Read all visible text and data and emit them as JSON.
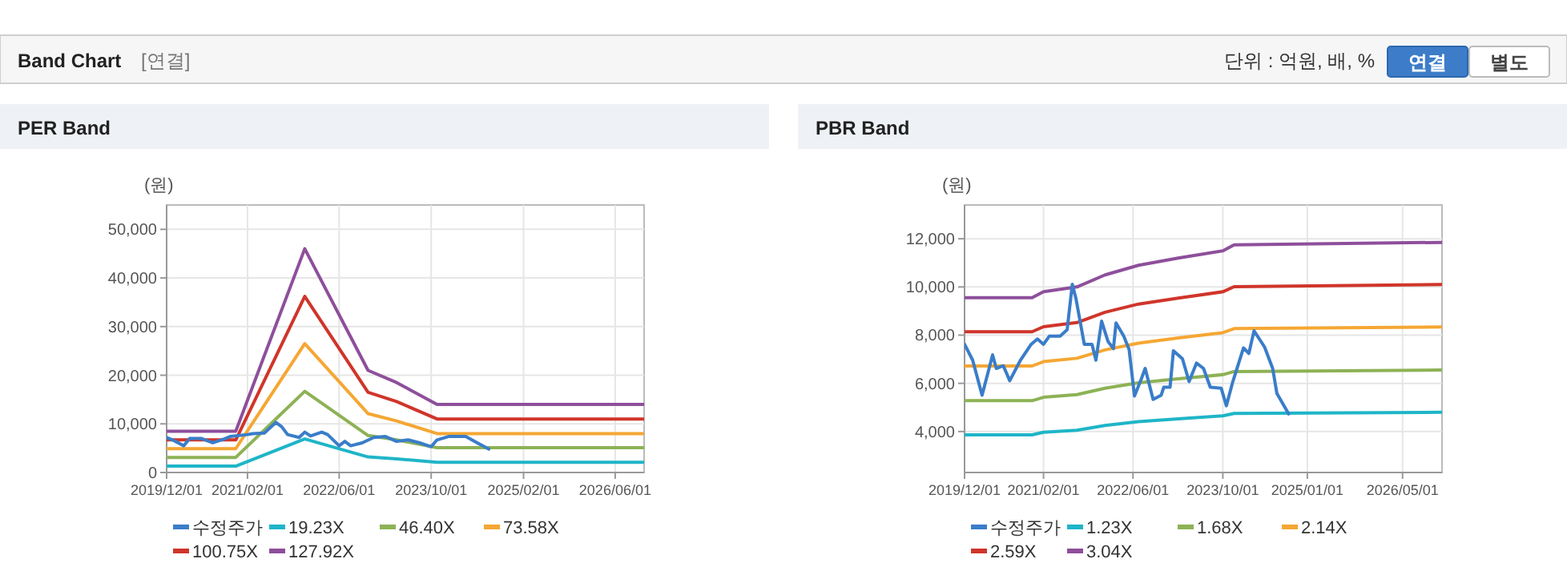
{
  "chart_data": [
    {
      "type": "other",
      "title": "Band Chart",
      "annotations": [
        "[연결]",
        "단위 : 억원, 배, %",
        "연결",
        "별도"
      ]
    },
    {
      "type": "line",
      "title": "PER Band",
      "ylabel": "(원)",
      "grid": true,
      "legend": "bottom",
      "marker": "none",
      "line_style": "solid",
      "xlim": [
        "2019-12-01",
        "2026-11-01"
      ],
      "xticks": [
        {
          "value": "2019-12-01",
          "label": "2019/12/01"
        },
        {
          "value": "2021-02-01",
          "label": "2021/02/01"
        },
        {
          "value": "2022-06-01",
          "label": "2022/06/01"
        },
        {
          "value": "2023-10-01",
          "label": "2023/10/01"
        },
        {
          "value": "2025-02-01",
          "label": "2025/02/01"
        },
        {
          "value": "2026-06-01",
          "label": "2026/06/01"
        }
      ],
      "ylim": [
        0,
        55000
      ],
      "yticks": [
        0,
        {
          "value": 10000,
          "label": "10,000"
        },
        {
          "value": 20000,
          "label": "20,000"
        },
        {
          "value": 30000,
          "label": "30,000"
        },
        {
          "value": 40000,
          "label": "40,000"
        },
        {
          "value": 50000,
          "label": "50,000"
        }
      ],
      "series": [
        {
          "name": "수정주가",
          "color": "#3a7dc9",
          "x": [
            "2019-12",
            "2020-01",
            "2020-03",
            "2020-04",
            "2020-06",
            "2020-08",
            "2020-10",
            "2020-11",
            "2021-02",
            "2021-03",
            "2021-05",
            "2021-07",
            "2021-08",
            "2021-09",
            "2021-11",
            "2021-12",
            "2022-01",
            "2022-03",
            "2022-04",
            "2022-06",
            "2022-07",
            "2022-08",
            "2022-10",
            "2022-12",
            "2023-02",
            "2023-04",
            "2023-06",
            "2023-08",
            "2023-10",
            "2023-11",
            "2024-01",
            "2024-04",
            "2024-06",
            "2024-08"
          ],
          "values": [
            7200,
            6700,
            5500,
            7000,
            7000,
            6100,
            6900,
            7400,
            7800,
            8000,
            8100,
            10300,
            9400,
            7800,
            7200,
            8300,
            7500,
            8300,
            7800,
            5500,
            6400,
            5500,
            6100,
            7200,
            7400,
            6400,
            6700,
            6100,
            5300,
            6700,
            7400,
            7400,
            6100,
            4800
          ]
        },
        {
          "name": "19.23X",
          "color": "#1fb5c8",
          "x": [
            "2019-12",
            "2020-12",
            "2021-12",
            "2022-11",
            "2023-04",
            "2023-11",
            "2026-11"
          ],
          "values": [
            1300,
            1300,
            6900,
            3200,
            2800,
            2100,
            2100
          ]
        },
        {
          "name": "46.40X",
          "color": "#8db255",
          "x": [
            "2019-12",
            "2020-12",
            "2021-12",
            "2022-11",
            "2023-04",
            "2023-11",
            "2026-11"
          ],
          "values": [
            3100,
            3100,
            16700,
            7600,
            6700,
            5100,
            5100
          ]
        },
        {
          "name": "73.58X",
          "color": "#f5a733",
          "x": [
            "2019-12",
            "2020-12",
            "2021-12",
            "2022-11",
            "2023-04",
            "2023-11",
            "2026-11"
          ],
          "values": [
            4900,
            4900,
            26500,
            12100,
            10600,
            8000,
            8000
          ]
        },
        {
          "name": "100.75X",
          "color": "#d0352a",
          "x": [
            "2019-12",
            "2020-12",
            "2021-12",
            "2022-11",
            "2023-04",
            "2023-11",
            "2026-11"
          ],
          "values": [
            6700,
            6700,
            36200,
            16500,
            14600,
            11000,
            11000
          ]
        },
        {
          "name": "127.92X",
          "color": "#8e4f9b",
          "x": [
            "2019-12",
            "2020-12",
            "2021-12",
            "2022-11",
            "2023-04",
            "2023-11",
            "2026-11"
          ],
          "values": [
            8500,
            8500,
            46000,
            21000,
            18500,
            14000,
            14000
          ]
        }
      ]
    },
    {
      "type": "line",
      "title": "PBR Band",
      "ylabel": "(원)",
      "grid": true,
      "legend": "bottom",
      "marker": "none",
      "line_style": "solid",
      "xlim": [
        "2019-12-01",
        "2027-01-01"
      ],
      "xticks": [
        {
          "value": "2019-12-01",
          "label": "2019/12/01"
        },
        {
          "value": "2021-02-01",
          "label": "2021/02/01"
        },
        {
          "value": "2022-06-01",
          "label": "2022/06/01"
        },
        {
          "value": "2023-10-01",
          "label": "2023/10/01"
        },
        {
          "value": "2025-01-01",
          "label": "2025/01/01"
        },
        {
          "value": "2026-06-01",
          "label": "2026/05/01"
        }
      ],
      "ylim": [
        2300,
        13400
      ],
      "yticks": [
        {
          "value": 4000,
          "label": "4,000"
        },
        {
          "value": 6000,
          "label": "6,000"
        },
        {
          "value": 8000,
          "label": "8,000"
        },
        {
          "value": 10000,
          "label": "10,000"
        },
        {
          "value": 12000,
          "label": "12,000"
        }
      ],
      "series": [
        {
          "name": "수정주가",
          "color": "#3a7dc9",
          "x": [
            "2019-12-01",
            "2020-01-14",
            "2020-03-05",
            "2020-05-01",
            "2020-05-21",
            "2020-06-28",
            "2020-08-02",
            "2020-09-29",
            "2020-11-26",
            "2020-12-30",
            "2021-02-01",
            "2021-03-05",
            "2021-05-02",
            "2021-06-09",
            "2021-07-07",
            "2021-07-27",
            "2021-09-10",
            "2021-10-22",
            "2021-11-12",
            "2021-12-13",
            "2022-01-17",
            "2022-02-15",
            "2022-03-01",
            "2022-04-12",
            "2022-05-11",
            "2022-06-09",
            "2022-07-16",
            "2022-08-06",
            "2022-09-18",
            "2022-11-01",
            "2022-11-15",
            "2022-12-19",
            "2023-01-06",
            "2023-02-24",
            "2023-04-01",
            "2023-05-11",
            "2023-06-18",
            "2023-07-25",
            "2023-09-22",
            "2023-10-20",
            "2023-11-24",
            "2024-01-21",
            "2024-02-19",
            "2024-03-18",
            "2024-05-14",
            "2024-06-27",
            "2024-07-20",
            "2024-09-22"
          ],
          "values": [
            7620,
            6960,
            5510,
            7180,
            6620,
            6730,
            6110,
            6960,
            7620,
            7840,
            7620,
            7960,
            7960,
            8220,
            10110,
            9510,
            7620,
            7620,
            6960,
            8580,
            7730,
            7440,
            8510,
            7960,
            7400,
            5470,
            6180,
            6620,
            5330,
            5510,
            5840,
            5840,
            7350,
            7020,
            6070,
            6840,
            6620,
            5840,
            5800,
            5070,
            6070,
            7470,
            7240,
            8180,
            7510,
            6620,
            5580,
            4730
          ]
        },
        {
          "name": "1.23X",
          "color": "#1fb5c8",
          "x": [
            "2019-12",
            "2020-12",
            "2021-02",
            "2021-08",
            "2022-01",
            "2022-07",
            "2023-02",
            "2023-10",
            "2023-12",
            "2027-01"
          ],
          "values": [
            3860,
            3860,
            3970,
            4050,
            4250,
            4410,
            4530,
            4650,
            4750,
            4800
          ]
        },
        {
          "name": "1.68X",
          "color": "#8db255",
          "x": [
            "2019-12",
            "2020-12",
            "2021-02",
            "2021-08",
            "2022-01",
            "2022-07",
            "2023-02",
            "2023-10",
            "2023-12",
            "2027-01"
          ],
          "values": [
            5280,
            5280,
            5420,
            5530,
            5800,
            6020,
            6190,
            6360,
            6490,
            6550
          ]
        },
        {
          "name": "2.14X",
          "color": "#f5a733",
          "x": [
            "2019-12",
            "2020-12",
            "2021-02",
            "2021-08",
            "2022-01",
            "2022-07",
            "2023-02",
            "2023-10",
            "2023-12",
            "2027-01"
          ],
          "values": [
            6720,
            6720,
            6900,
            7040,
            7390,
            7670,
            7880,
            8100,
            8270,
            8340
          ]
        },
        {
          "name": "2.59X",
          "color": "#d0352a",
          "x": [
            "2019-12",
            "2020-12",
            "2021-02",
            "2021-08",
            "2022-01",
            "2022-07",
            "2023-02",
            "2023-10",
            "2023-12",
            "2027-01"
          ],
          "values": [
            8140,
            8140,
            8350,
            8520,
            8950,
            9290,
            9540,
            9800,
            10010,
            10100
          ]
        },
        {
          "name": "3.04X",
          "color": "#8e4f9b",
          "x": [
            "2019-12",
            "2020-12",
            "2021-02",
            "2021-08",
            "2022-01",
            "2022-07",
            "2023-02",
            "2023-10",
            "2023-12",
            "2027-01"
          ],
          "values": [
            9550,
            9550,
            9800,
            10000,
            10500,
            10900,
            11200,
            11500,
            11750,
            11850
          ]
        }
      ]
    }
  ]
}
